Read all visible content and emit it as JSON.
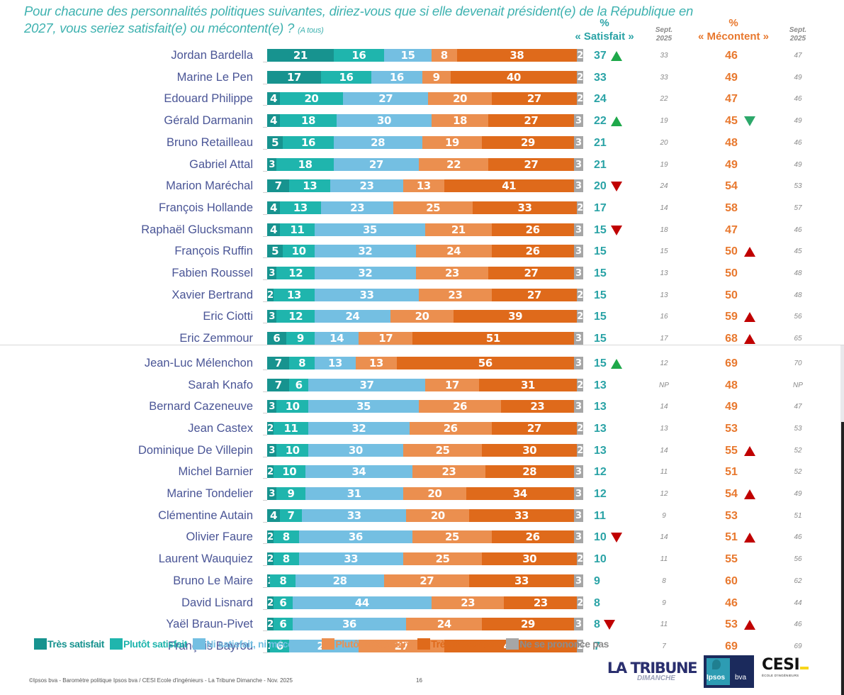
{
  "header": {
    "question_line1": "Pour chacune des personnalités politiques suivantes, diriez-vous que si elle devenait président(e) de la République en",
    "question_line2": "2027, vous seriez satisfait(e) ou mécontent(e) ?",
    "base": "(A tous)",
    "satisfait_pct": "%",
    "satisfait_label": "« Satisfait »",
    "mecontent_pct": "%",
    "mecontent_label": "« Mécontent »",
    "sept_label_1": "Sept.",
    "sept_label_2": "2025"
  },
  "colors": {
    "tres_satisfait": "#17938f",
    "plutot_satisfait": "#1fb5ad",
    "ni_ni": "#74bfe2",
    "plutot_mecontent": "#eb8f4f",
    "tres_mecontent": "#df6a1b",
    "nsp": "#a6a6a6",
    "up_good": "#1ea84a",
    "down_good": "#2ca86a",
    "bad": "#c00000"
  },
  "chart_data": {
    "type": "bar",
    "orientation": "horizontal-stacked-100",
    "title": "Pour chacune des personnalités politiques suivantes, diriez-vous que si elle devenait président(e) de la République en 2027, vous seriez satisfait(e) ou mécontent(e) ? (A tous)",
    "xlabel": "",
    "ylabel": "",
    "xlim": [
      0,
      100
    ],
    "legend_position": "bottom",
    "series_names": [
      "Très satisfait",
      "Plutôt satisfait",
      "Ni satisfait, ni mécontent",
      "Plutôt mécontent",
      "Très mécontent",
      "Ne se prononce pas"
    ],
    "rows": [
      {
        "name": "Jordan Bardella",
        "values": [
          21,
          16,
          15,
          8,
          38,
          2
        ],
        "satisfait": "37",
        "sat_trend": "up",
        "sat_sept": "33",
        "mecontent": "46",
        "mec_trend": "",
        "mec_sept": "47"
      },
      {
        "name": "Marine Le Pen",
        "values": [
          17,
          16,
          16,
          9,
          40,
          2
        ],
        "satisfait": "33",
        "sat_trend": "",
        "sat_sept": "33",
        "mecontent": "49",
        "mec_trend": "",
        "mec_sept": "49"
      },
      {
        "name": "Edouard Philippe",
        "values": [
          4,
          20,
          27,
          20,
          27,
          2
        ],
        "satisfait": "24",
        "sat_trend": "",
        "sat_sept": "22",
        "mecontent": "47",
        "mec_trend": "",
        "mec_sept": "46"
      },
      {
        "name": "Gérald Darmanin",
        "values": [
          4,
          18,
          30,
          18,
          27,
          3
        ],
        "satisfait": "22",
        "sat_trend": "up",
        "sat_sept": "19",
        "mecontent": "45",
        "mec_trend": "down-good",
        "mec_sept": "49"
      },
      {
        "name": "Bruno Retailleau",
        "values": [
          5,
          16,
          28,
          19,
          29,
          3
        ],
        "satisfait": "21",
        "sat_trend": "",
        "sat_sept": "20",
        "mecontent": "48",
        "mec_trend": "",
        "mec_sept": "46"
      },
      {
        "name": "Gabriel Attal",
        "values": [
          3,
          18,
          27,
          22,
          27,
          3
        ],
        "satisfait": "21",
        "sat_trend": "",
        "sat_sept": "19",
        "mecontent": "49",
        "mec_trend": "",
        "mec_sept": "49"
      },
      {
        "name": "Marion Maréchal",
        "values": [
          7,
          13,
          23,
          13,
          41,
          3
        ],
        "satisfait": "20",
        "sat_trend": "down",
        "sat_sept": "24",
        "mecontent": "54",
        "mec_trend": "",
        "mec_sept": "53"
      },
      {
        "name": "François Hollande",
        "values": [
          4,
          13,
          23,
          25,
          33,
          2
        ],
        "satisfait": "17",
        "sat_trend": "",
        "sat_sept": "14",
        "mecontent": "58",
        "mec_trend": "",
        "mec_sept": "57"
      },
      {
        "name": "Raphaël Glucksmann",
        "values": [
          4,
          11,
          35,
          21,
          26,
          3
        ],
        "satisfait": "15",
        "sat_trend": "down",
        "sat_sept": "18",
        "mecontent": "47",
        "mec_trend": "",
        "mec_sept": "46"
      },
      {
        "name": "François Ruffin",
        "values": [
          5,
          10,
          32,
          24,
          26,
          3
        ],
        "satisfait": "15",
        "sat_trend": "",
        "sat_sept": "15",
        "mecontent": "50",
        "mec_trend": "up-bad",
        "mec_sept": "45"
      },
      {
        "name": "Fabien Roussel",
        "values": [
          3,
          12,
          32,
          23,
          27,
          3
        ],
        "satisfait": "15",
        "sat_trend": "",
        "sat_sept": "13",
        "mecontent": "50",
        "mec_trend": "",
        "mec_sept": "48"
      },
      {
        "name": "Xavier Bertrand",
        "values": [
          2,
          13,
          33,
          23,
          27,
          2
        ],
        "satisfait": "15",
        "sat_trend": "",
        "sat_sept": "13",
        "mecontent": "50",
        "mec_trend": "",
        "mec_sept": "48"
      },
      {
        "name": "Eric Ciotti",
        "values": [
          3,
          12,
          24,
          20,
          39,
          2
        ],
        "satisfait": "15",
        "sat_trend": "",
        "sat_sept": "16",
        "mecontent": "59",
        "mec_trend": "up-bad",
        "mec_sept": "56"
      },
      {
        "name": "Eric Zemmour",
        "values": [
          6,
          9,
          14,
          17,
          51,
          3
        ],
        "satisfait": "15",
        "sat_trend": "",
        "sat_sept": "17",
        "mecontent": "68",
        "mec_trend": "up-bad",
        "mec_sept": "65"
      },
      {
        "name": "Jean-Luc Mélenchon",
        "values": [
          7,
          8,
          13,
          13,
          56,
          3
        ],
        "satisfait": "15",
        "sat_trend": "up",
        "sat_sept": "12",
        "mecontent": "69",
        "mec_trend": "",
        "mec_sept": "70"
      },
      {
        "name": "Sarah Knafo",
        "values": [
          7,
          6,
          37,
          17,
          31,
          2
        ],
        "satisfait": "13",
        "sat_trend": "",
        "sat_sept": "NP",
        "mecontent": "48",
        "mec_trend": "",
        "mec_sept": "NP"
      },
      {
        "name": "Bernard Cazeneuve",
        "values": [
          3,
          10,
          35,
          26,
          23,
          3
        ],
        "satisfait": "13",
        "sat_trend": "",
        "sat_sept": "14",
        "mecontent": "49",
        "mec_trend": "",
        "mec_sept": "47"
      },
      {
        "name": "Jean Castex",
        "values": [
          2,
          11,
          32,
          26,
          27,
          2
        ],
        "satisfait": "13",
        "sat_trend": "",
        "sat_sept": "13",
        "mecontent": "53",
        "mec_trend": "",
        "mec_sept": "53"
      },
      {
        "name": "Dominique De Villepin",
        "values": [
          3,
          10,
          30,
          25,
          30,
          2
        ],
        "satisfait": "13",
        "sat_trend": "",
        "sat_sept": "14",
        "mecontent": "55",
        "mec_trend": "up-bad",
        "mec_sept": "52"
      },
      {
        "name": "Michel Barnier",
        "values": [
          2,
          10,
          34,
          23,
          28,
          3
        ],
        "satisfait": "12",
        "sat_trend": "",
        "sat_sept": "11",
        "mecontent": "51",
        "mec_trend": "",
        "mec_sept": "52"
      },
      {
        "name": "Marine Tondelier",
        "values": [
          3,
          9,
          31,
          20,
          34,
          3
        ],
        "satisfait": "12",
        "sat_trend": "",
        "sat_sept": "12",
        "mecontent": "54",
        "mec_trend": "up-bad",
        "mec_sept": "49"
      },
      {
        "name": "Clémentine Autain",
        "values": [
          4,
          7,
          33,
          20,
          33,
          3
        ],
        "satisfait": "11",
        "sat_trend": "",
        "sat_sept": "9",
        "mecontent": "53",
        "mec_trend": "",
        "mec_sept": "51"
      },
      {
        "name": "Olivier Faure",
        "values": [
          2,
          8,
          36,
          25,
          26,
          3
        ],
        "satisfait": "10",
        "sat_trend": "down",
        "sat_sept": "14",
        "mecontent": "51",
        "mec_trend": "up-bad",
        "mec_sept": "46"
      },
      {
        "name": "Laurent Wauquiez",
        "values": [
          2,
          8,
          33,
          25,
          30,
          2
        ],
        "satisfait": "10",
        "sat_trend": "",
        "sat_sept": "11",
        "mecontent": "55",
        "mec_trend": "",
        "mec_sept": "56"
      },
      {
        "name": "Bruno Le Maire",
        "values": [
          1,
          8,
          28,
          27,
          33,
          3
        ],
        "satisfait": "9",
        "sat_trend": "",
        "sat_sept": "8",
        "mecontent": "60",
        "mec_trend": "",
        "mec_sept": "62"
      },
      {
        "name": "David Lisnard",
        "values": [
          2,
          6,
          44,
          23,
          23,
          2
        ],
        "satisfait": "8",
        "sat_trend": "",
        "sat_sept": "9",
        "mecontent": "46",
        "mec_trend": "",
        "mec_sept": "44"
      },
      {
        "name": "Yaël Braun-Pivet",
        "values": [
          2,
          6,
          36,
          24,
          29,
          3
        ],
        "satisfait": "8",
        "sat_trend": "down",
        "sat_sept": "11",
        "mecontent": "53",
        "mec_trend": "up-bad",
        "mec_sept": "46"
      },
      {
        "name": "François Bayrou",
        "values": [
          1,
          6,
          22,
          27,
          42,
          2
        ],
        "satisfait": "7",
        "sat_trend": "",
        "sat_sept": "7",
        "mecontent": "69",
        "mec_trend": "",
        "mec_sept": "69"
      }
    ]
  },
  "legend": [
    {
      "label": "Très satisfait",
      "color": "#17938f",
      "text_color": "#17938f"
    },
    {
      "label": "Plutôt satisfait",
      "color": "#1fb5ad",
      "text_color": "#1fb5ad"
    },
    {
      "label": "Ni satisfait, ni mécontent",
      "color": "#74bfe2",
      "text_color": "#74bfe2"
    },
    {
      "label": "Plutôt mécontent",
      "color": "#eb8f4f",
      "text_color": "#eb8f4f"
    },
    {
      "label": "Très mécontent",
      "color": "#df6a1b",
      "text_color": "#df6a1b"
    },
    {
      "label": "Ne se prononce pas",
      "color": "#a6a6a6",
      "text_color": "#8c8c8c"
    }
  ],
  "footer": {
    "source": "©Ipsos bva - Baromètre politique Ipsos bva / CESI Ecole d'ingénieurs - La Tribune Dimanche - Nov. 2025",
    "page": "16"
  },
  "logos": {
    "tribune_line1": "LA TRIBUNE",
    "tribune_line2": "DIMANCHE",
    "ipsos": "Ipsos",
    "bva": "bva",
    "cesi": "CESI",
    "cesi_sub": "ÉCOLE D'INGÉNIEURS"
  }
}
